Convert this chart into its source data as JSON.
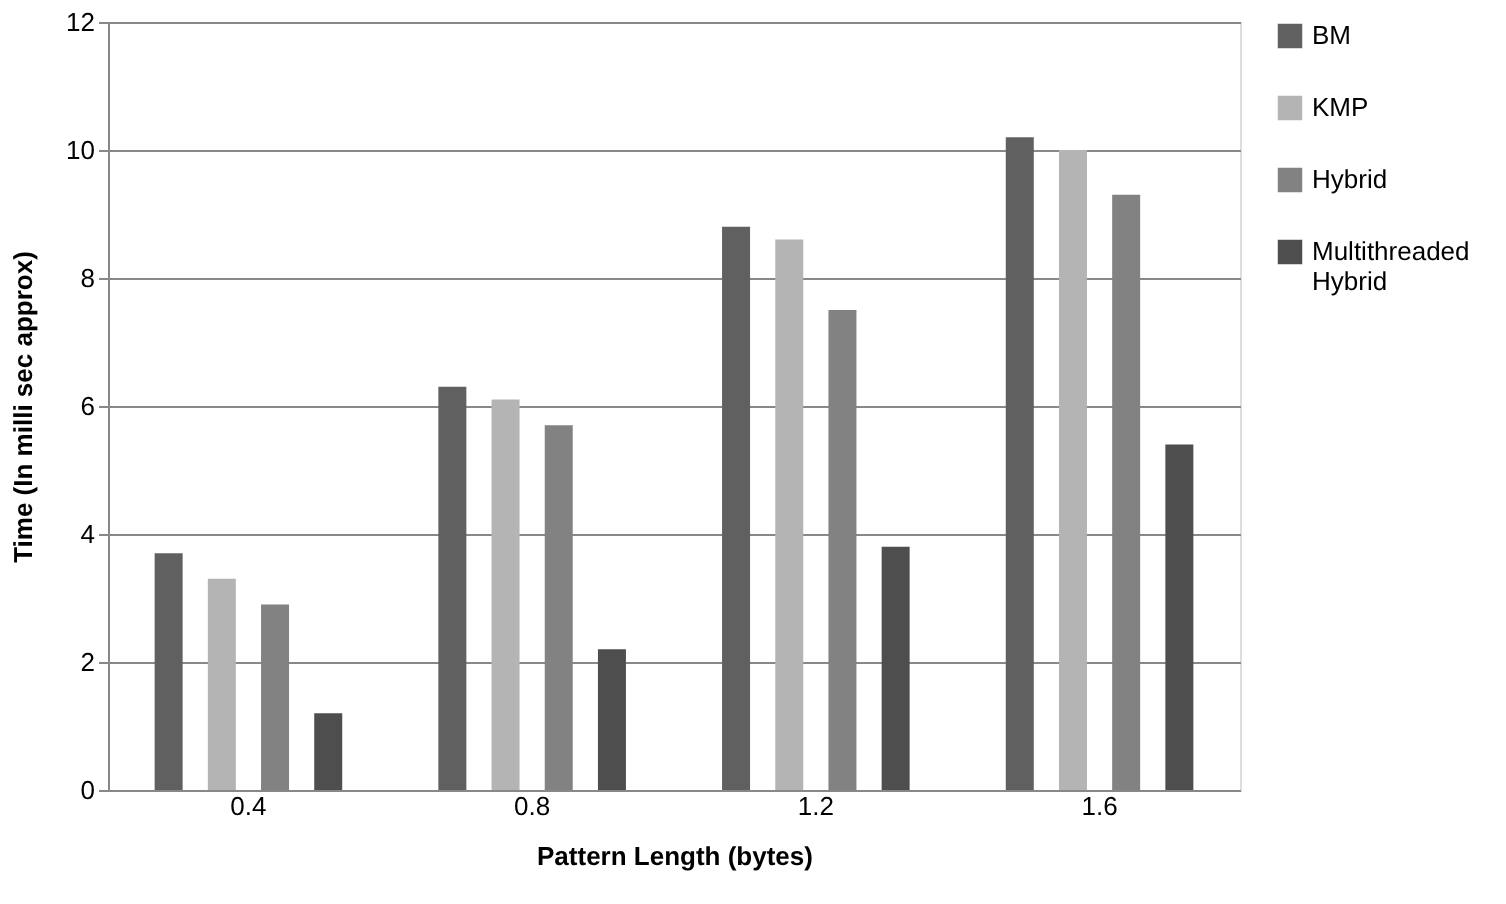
{
  "chart_data": {
    "type": "bar",
    "xlabel": "Pattern Length (bytes)",
    "ylabel": "Time (In milli sec approx)",
    "categories": [
      "0.4",
      "0.8",
      "1.2",
      "1.6"
    ],
    "series": [
      {
        "name": "BM",
        "color": "#606060",
        "values": [
          3.7,
          6.3,
          8.8,
          10.2
        ]
      },
      {
        "name": "KMP",
        "color": "#b4b4b4",
        "values": [
          3.3,
          6.1,
          8.6,
          10.0
        ]
      },
      {
        "name": "Hybrid",
        "color": "#828282",
        "values": [
          2.9,
          5.7,
          7.5,
          9.3
        ]
      },
      {
        "name": "Multithreaded Hybrid",
        "color": "#4e4e4e",
        "values": [
          1.2,
          2.2,
          3.8,
          5.4
        ]
      }
    ],
    "ylim": [
      0,
      12
    ],
    "yticks": [
      0,
      2,
      4,
      6,
      8,
      10,
      12
    ],
    "grid": "y",
    "legend": "right"
  }
}
